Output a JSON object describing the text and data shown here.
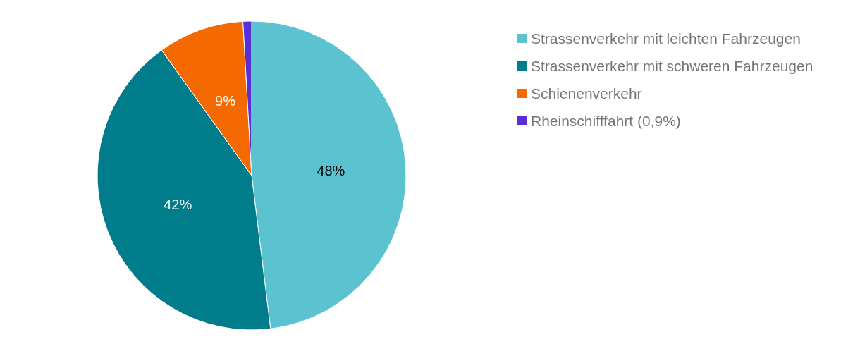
{
  "chart_data": {
    "type": "pie",
    "categories": [
      "Strassenverkehr mit leichten Fahrzeugen",
      "Strassenverkehr mit schweren Fahrzeugen",
      "Schienenverkehr",
      "Rheinschifffahrt (0,9%)"
    ],
    "values": [
      48,
      42,
      9,
      0.9
    ],
    "colors": [
      "#5bc2d0",
      "#007c8a",
      "#f46a00",
      "#5a2ed6"
    ],
    "value_labels": [
      "48%",
      "42%",
      "9%",
      null
    ],
    "legend": "top right"
  }
}
